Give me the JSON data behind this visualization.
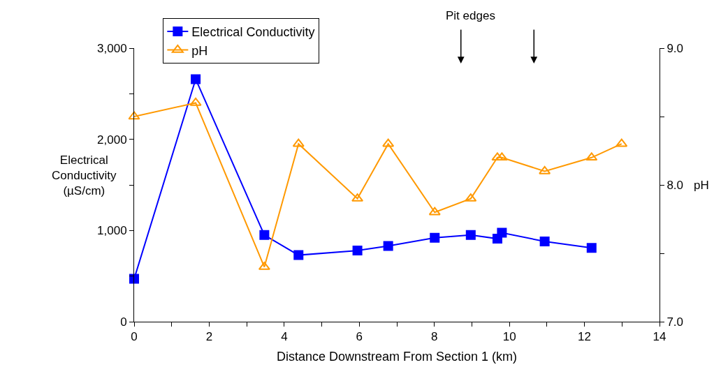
{
  "chart_data": {
    "type": "line",
    "xlabel": "Distance Downstream From Section 1 (km)",
    "ylabel": "Electrical\nConductivity\n(µS/cm)",
    "y2label": "pH",
    "series": [
      {
        "name": "Electrical Conductivity",
        "color": "#0000ff",
        "marker": "square",
        "x": [
          0,
          1.64,
          3.47,
          4.38,
          5.95,
          6.77,
          8.01,
          8.97,
          9.68,
          9.8,
          10.94,
          12.19
        ],
        "values": [
          470,
          2660,
          950,
          730,
          780,
          830,
          920,
          950,
          910,
          975,
          880,
          810
        ]
      },
      {
        "name": "pH",
        "color": "#ff9900",
        "marker": "triangle",
        "axis": "y2",
        "x": [
          0,
          1.64,
          3.47,
          4.38,
          5.95,
          6.77,
          8.01,
          8.97,
          9.68,
          9.8,
          10.94,
          12.19,
          12.99
        ],
        "values": [
          8.5,
          8.6,
          7.4,
          8.3,
          7.9,
          8.3,
          7.8,
          7.9,
          8.2,
          8.2,
          8.1,
          8.2,
          8.3
        ]
      }
    ],
    "xlim": [
      0,
      14
    ],
    "xticks": [
      0,
      {
        "value": 1,
        "label": null
      },
      2,
      {
        "value": 3,
        "label": null
      },
      4,
      {
        "value": 5,
        "label": null
      },
      6,
      {
        "value": 7,
        "label": null
      },
      8,
      {
        "value": 9,
        "label": null
      },
      10,
      {
        "value": 11,
        "label": null
      },
      12,
      {
        "value": 13,
        "label": null
      },
      14
    ],
    "ylim": [
      0,
      3000
    ],
    "yticks": [
      0,
      {
        "value": 500,
        "label": null
      },
      {
        "value": 1000,
        "label": "1,000"
      },
      {
        "value": 1500,
        "label": null
      },
      {
        "value": 2000,
        "label": "2,000"
      },
      {
        "value": 2500,
        "label": null
      },
      {
        "value": 3000,
        "label": "3,000"
      }
    ],
    "y2lim": [
      7.0,
      9.0
    ],
    "y2ticks": [
      {
        "value": 7.0,
        "label": "7.0"
      },
      {
        "value": 7.5,
        "label": null
      },
      {
        "value": 8.0,
        "label": "8.0"
      },
      {
        "value": 8.5,
        "label": null
      },
      {
        "value": 9.0,
        "label": "9.0"
      }
    ],
    "annotations": [
      "Pit edges"
    ],
    "legend": "top left",
    "line_style": "solid"
  }
}
